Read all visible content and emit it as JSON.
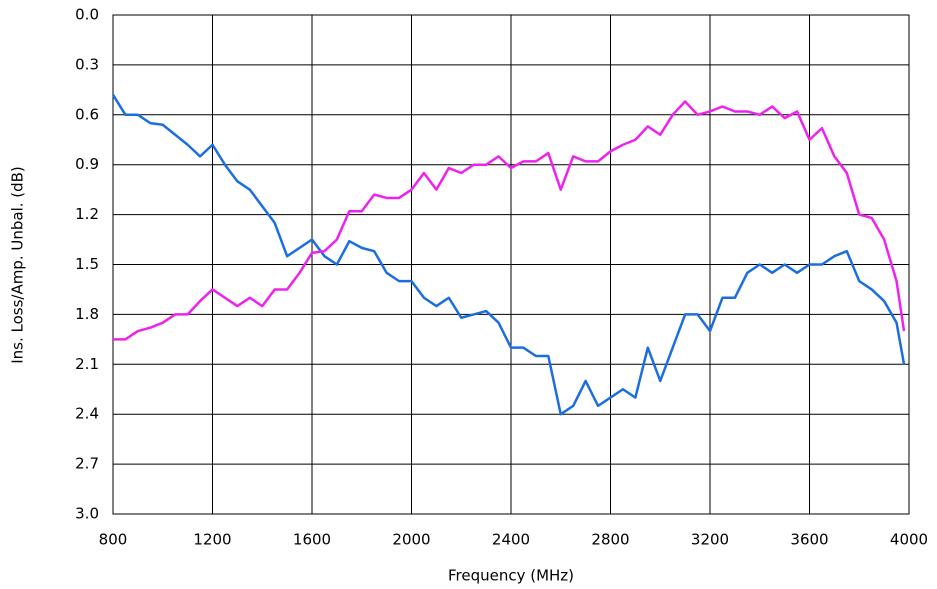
{
  "chart_data": {
    "type": "line",
    "xlabel": "Frequency (MHz)",
    "ylabel": "Ins. Loss/Amp. Unbal. (dB)",
    "x": [
      800,
      850,
      900,
      950,
      1000,
      1050,
      1100,
      1150,
      1200,
      1250,
      1300,
      1350,
      1400,
      1450,
      1500,
      1550,
      1600,
      1650,
      1700,
      1750,
      1800,
      1850,
      1900,
      1950,
      2000,
      2050,
      2100,
      2150,
      2200,
      2250,
      2300,
      2350,
      2400,
      2450,
      2500,
      2550,
      2600,
      2650,
      2700,
      2750,
      2800,
      2850,
      2900,
      2950,
      3000,
      3050,
      3100,
      3150,
      3200,
      3250,
      3300,
      3350,
      3400,
      3450,
      3500,
      3550,
      3600,
      3650,
      3700,
      3750,
      3800,
      3850,
      3900,
      3950,
      3980
    ],
    "series": [
      {
        "color": "#1a6ee0",
        "values": [
          0.48,
          0.6,
          0.6,
          0.65,
          0.66,
          0.72,
          0.78,
          0.85,
          0.78,
          0.9,
          1.0,
          1.05,
          1.15,
          1.25,
          1.45,
          1.4,
          1.35,
          1.45,
          1.5,
          1.36,
          1.4,
          1.42,
          1.55,
          1.6,
          1.6,
          1.7,
          1.75,
          1.7,
          1.82,
          1.8,
          1.78,
          1.85,
          2.0,
          2.0,
          2.05,
          2.05,
          2.4,
          2.35,
          2.2,
          2.35,
          2.3,
          2.25,
          2.3,
          2.0,
          2.2,
          2.0,
          1.8,
          1.8,
          1.9,
          1.7,
          1.7,
          1.55,
          1.5,
          1.55,
          1.5,
          1.55,
          1.5,
          1.5,
          1.45,
          1.42,
          1.6,
          1.65,
          1.72,
          1.85,
          2.1
        ]
      },
      {
        "color": "#ee22ee",
        "values": [
          1.95,
          1.95,
          1.9,
          1.88,
          1.85,
          1.8,
          1.8,
          1.72,
          1.65,
          1.7,
          1.75,
          1.7,
          1.75,
          1.65,
          1.65,
          1.55,
          1.43,
          1.42,
          1.35,
          1.18,
          1.18,
          1.08,
          1.1,
          1.1,
          1.05,
          0.95,
          1.05,
          0.92,
          0.95,
          0.9,
          0.9,
          0.85,
          0.92,
          0.88,
          0.88,
          0.83,
          1.05,
          0.85,
          0.88,
          0.88,
          0.82,
          0.78,
          0.75,
          0.67,
          0.72,
          0.6,
          0.52,
          0.6,
          0.58,
          0.55,
          0.58,
          0.58,
          0.6,
          0.55,
          0.62,
          0.58,
          0.75,
          0.68,
          0.85,
          0.95,
          1.2,
          1.22,
          1.35,
          1.6,
          1.9
        ]
      }
    ],
    "xlim": [
      800,
      4000
    ],
    "xticks": [
      800,
      1200,
      1600,
      2000,
      2400,
      2800,
      3200,
      3600,
      4000
    ],
    "ylim": [
      0,
      3
    ],
    "y_reversed": true,
    "yticks": [
      {
        "value": 0,
        "label": "0.0"
      },
      0.3,
      0.6,
      0.9,
      1.2,
      1.5,
      1.8,
      2.1,
      2.4,
      2.7,
      {
        "value": 3,
        "label": "3.0"
      }
    ],
    "grid": true
  }
}
